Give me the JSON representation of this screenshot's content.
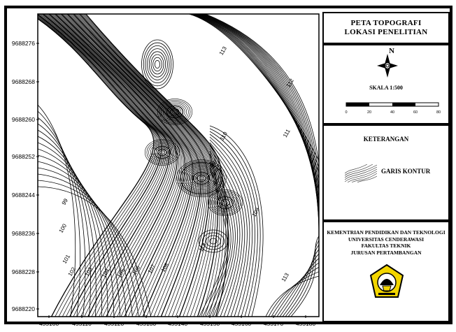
{
  "map": {
    "y_labels": [
      "9688276",
      "9688268",
      "9688260",
      "9688252",
      "9688244",
      "9688236",
      "9688228",
      "9688220"
    ],
    "x_labels": [
      "455100",
      "455110",
      "455120",
      "455130",
      "455140",
      "455150",
      "455160",
      "455170",
      "455180"
    ],
    "contour_labels": [
      "113",
      "112",
      "111",
      "110",
      "109",
      "99",
      "100",
      "101",
      "102",
      "103",
      "104",
      "105",
      "106",
      "107",
      "108",
      "113",
      "113"
    ]
  },
  "title": {
    "line1": "PETA TOPOGRAFI",
    "line2": "LOKASI PENELITIAN"
  },
  "north": {
    "label": "N",
    "icon": "north-arrow-icon"
  },
  "scale": {
    "text": "SKALA 1:500",
    "ticks": [
      "0",
      "20",
      "40",
      "60",
      "80"
    ]
  },
  "legend": {
    "title": "KETERANGAN",
    "item_label": "GARIS KONTUR"
  },
  "institution": {
    "line1": "KEMENTRIAN PENDIDIKAN DAN TEKNOLOGI",
    "line2": "UNIVERSITAS CENDERAWASI",
    "line3": "FAKULTAS TEKNIK",
    "line4": "JURUSAN PERTAMBANGAN",
    "logo_icon": "university-logo-icon"
  },
  "colors": {
    "logo_yellow": "#f2d500",
    "logo_black": "#000000"
  }
}
